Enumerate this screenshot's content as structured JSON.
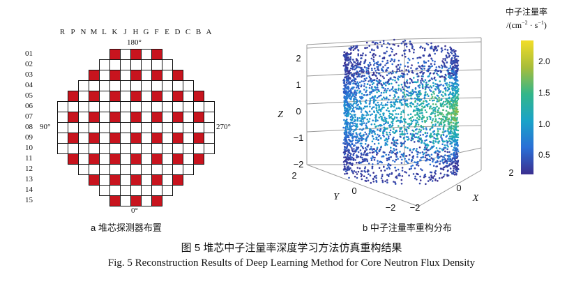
{
  "left_panel": {
    "column_labels": [
      "R",
      "P",
      "N",
      "M",
      "L",
      "K",
      "J",
      "H",
      "G",
      "F",
      "E",
      "D",
      "C",
      "B",
      "A"
    ],
    "row_labels": [
      "01",
      "02",
      "03",
      "04",
      "05",
      "06",
      "07",
      "08",
      "09",
      "10",
      "11",
      "12",
      "13",
      "14",
      "15"
    ],
    "angle_top": "180°",
    "angle_bottom": "0°",
    "angle_left": "90°",
    "angle_right": "270°",
    "caption": "a  堆芯探测器布置"
  },
  "right_panel": {
    "axis_labels": {
      "x": "X",
      "y": "Y",
      "z": "Z"
    },
    "z_ticks": [
      "2",
      "1",
      "0",
      "−1",
      "−2"
    ],
    "y_ticks": [
      "2",
      "0",
      "−2"
    ],
    "x_ticks": [
      "−2",
      "0",
      "2"
    ],
    "colorbar_title_line1": "中子注量率",
    "colorbar_title_line2": "/(cm",
    "colorbar_title_sup1": "−2",
    "colorbar_title_mid": " · s",
    "colorbar_title_sup2": "−1",
    "colorbar_title_end": ")",
    "colorbar_ticks": [
      "2.0",
      "1.5",
      "1.0",
      "0.5"
    ],
    "colorbar_range": [
      0.2,
      2.35
    ],
    "caption": "b  中子注量率重构分布"
  },
  "figure_caption_cn": "图 5    堆芯中子注量率深度学习方法仿真重构结果",
  "figure_caption_en": "Fig. 5    Reconstruction Results of Deep Learning Method for Core Neutron Flux Density",
  "colors": {
    "detector": "#c8141e",
    "cell_border": "#111111"
  }
}
